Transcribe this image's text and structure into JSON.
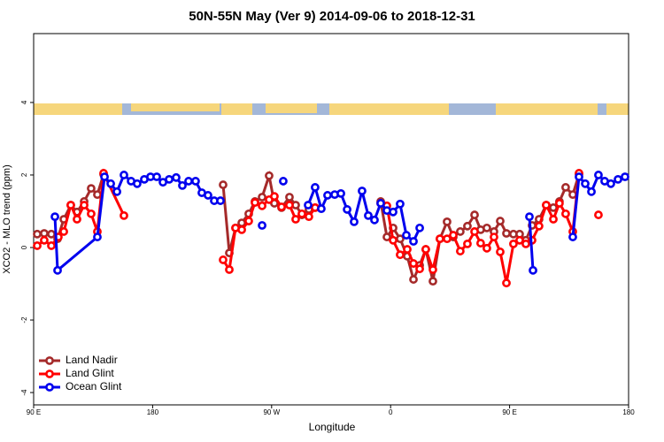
{
  "chart_data": {
    "type": "line",
    "title": "50N-55N May (Ver 9)   2014-09-06 to 2018-12-31",
    "xlabel": "Longitude",
    "ylabel": "XCO2 - MLO trend (ppm)",
    "xlim": [
      90,
      540
    ],
    "ylim": [
      -4.34,
      5.9
    ],
    "xticks": [
      {
        "value": 90,
        "label": "90 E"
      },
      {
        "value": 180,
        "label": "180"
      },
      {
        "value": 270,
        "label": "90 W"
      },
      {
        "value": 360,
        "label": "0"
      },
      {
        "value": 450,
        "label": "90 E"
      },
      {
        "value": 540,
        "label": "180"
      }
    ],
    "yticks": [
      -4,
      -2,
      0,
      2,
      4
    ],
    "legend": "bottom-left",
    "series": [
      {
        "name": "Land Nadir",
        "color": "#a52a2a",
        "x": [
          92.7,
          98,
          103.4,
          108.1,
          112.8,
          118.1,
          122.8,
          128.2,
          133.5,
          138.2,
          142.9,
          null,
          233.3,
          238,
          242.7,
          247.4,
          252.7,
          257.4,
          262.8,
          268.1,
          272.1,
          277.5,
          283.5,
          288.2,
          292.9,
          298.2,
          302.9,
          null,
          352.5,
          357.2,
          361.9,
          367.2,
          372.6,
          377.3,
          382,
          386.6,
          392,
          397.3,
          402.7,
          407.4,
          412.7,
          418.1,
          423.5,
          428.1,
          432.8,
          438.2,
          442.9,
          447.6,
          452.9,
          457.6,
          462.3,
          467,
          472.3,
          477.7,
          483.1,
          487.7,
          492.4,
          497.8,
          502.5
        ],
        "values": [
          0.37,
          0.39,
          0.37,
          0.24,
          0.78,
          1.17,
          0.98,
          1.27,
          1.63,
          1.46,
          2.02,
          null,
          1.73,
          -0.15,
          0.54,
          0.68,
          0.93,
          1.27,
          1.39,
          1.98,
          1.22,
          1.1,
          1.39,
          1.17,
          0.9,
          1.05,
          1.1,
          null,
          1.27,
          0.29,
          0.54,
          0.24,
          -0.24,
          -0.88,
          -0.49,
          -0.05,
          -0.93,
          0.24,
          0.71,
          0.29,
          0.44,
          0.59,
          0.9,
          0.49,
          0.54,
          0.44,
          0.73,
          0.39,
          0.37,
          0.37,
          0.2,
          0.61,
          0.78,
          1.17,
          1.1,
          1.27,
          1.66,
          1.46,
          2.02
        ]
      },
      {
        "name": "Land Glint",
        "color": "#ff0000",
        "x": [
          92.7,
          98,
          103.4,
          108.7,
          112.8,
          118.1,
          122.8,
          128.2,
          133.5,
          138.2,
          142.9,
          158.3,
          null,
          233.3,
          238,
          242.7,
          247.4,
          252.7,
          257.4,
          262.8,
          268.1,
          272.1,
          277.5,
          283.5,
          288.2,
          292.9,
          298.2,
          302.9,
          null,
          352.5,
          357.2,
          361.9,
          367.2,
          372.6,
          377.3,
          382,
          386.6,
          392,
          397.3,
          402.7,
          407.4,
          412.7,
          418.1,
          423.5,
          428.1,
          432.8,
          438.2,
          442.9,
          447.6,
          452.9,
          457.6,
          462.3,
          467,
          472.3,
          477.7,
          483.1,
          487.7,
          492.4,
          497.8,
          502.5,
          null,
          517.2
        ],
        "values": [
          0.05,
          0.2,
          0.05,
          0.29,
          0.44,
          1.17,
          0.78,
          1.17,
          0.93,
          0.44,
          2.05,
          0.88,
          null,
          -0.34,
          -0.61,
          0.54,
          0.49,
          0.73,
          1.24,
          1.15,
          1.32,
          1.41,
          1.12,
          1.17,
          0.78,
          0.93,
          0.85,
          1.1,
          null,
          1.22,
          1.15,
          0.2,
          -0.2,
          -0.05,
          -0.44,
          -0.59,
          -0.05,
          -0.61,
          0.24,
          0.24,
          0.34,
          -0.1,
          0.1,
          0.44,
          0.12,
          -0.02,
          0.29,
          -0.12,
          -0.98,
          0.1,
          0.2,
          0.1,
          0.2,
          0.59,
          1.17,
          0.78,
          1.22,
          0.93,
          0.44,
          2.05,
          null,
          0.9
        ]
      },
      {
        "name": "Ocean Glint",
        "color": "#0000ee",
        "x": [
          106.1,
          108.1,
          138.2,
          143.6,
          148.3,
          153,
          158.3,
          163.7,
          168.3,
          173.7,
          178.4,
          183.1,
          187.8,
          192.5,
          197.8,
          202.5,
          207.2,
          212.5,
          217.2,
          221.9,
          226.6,
          231.3,
          null,
          262.8,
          null,
          278.8,
          null,
          297.6,
          302.9,
          307.6,
          312.3,
          317.7,
          322.4,
          327.1,
          332.4,
          338.4,
          343.1,
          347.8,
          352.5,
          357.2,
          361.9,
          367.2,
          371.9,
          377.3,
          382,
          null,
          465,
          467.7,
          null,
          497.8,
          502.5,
          507.2,
          511.9,
          517.2,
          521.9,
          526.6,
          532,
          537.3
        ],
        "values": [
          0.85,
          -0.63,
          0.29,
          1.95,
          1.76,
          1.54,
          2.0,
          1.83,
          1.76,
          1.88,
          1.95,
          1.95,
          1.8,
          1.88,
          1.93,
          1.71,
          1.83,
          1.83,
          1.51,
          1.44,
          1.29,
          1.29,
          null,
          0.61,
          null,
          1.83,
          null,
          1.17,
          1.66,
          1.07,
          1.44,
          1.46,
          1.49,
          1.05,
          0.71,
          1.56,
          0.88,
          0.76,
          1.22,
          1.02,
          0.98,
          1.2,
          0.34,
          0.17,
          0.54,
          null,
          0.85,
          -0.63,
          null,
          0.29,
          1.95,
          1.76,
          1.54,
          2.0,
          1.83,
          1.76,
          1.88,
          1.95
        ]
      }
    ]
  }
}
